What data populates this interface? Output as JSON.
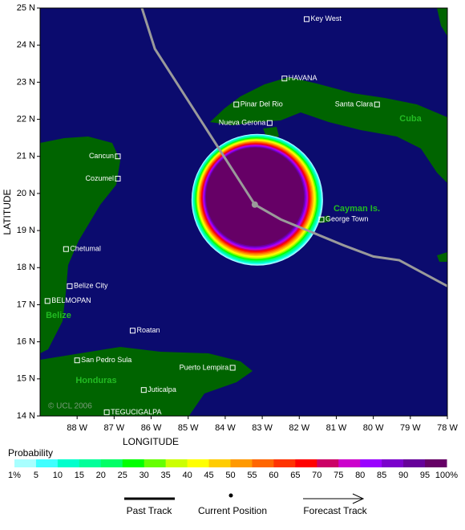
{
  "map": {
    "x_axis_label": "LONGITUDE",
    "y_axis_label": "LATITUDE",
    "lon_range": [
      89,
      78
    ],
    "lat_range": [
      14,
      25
    ],
    "lon_ticks": [
      {
        "value": 88,
        "label": "88 W"
      },
      {
        "value": 87,
        "label": "87 W"
      },
      {
        "value": 86,
        "label": "86 W"
      },
      {
        "value": 85,
        "label": "85 W"
      },
      {
        "value": 84,
        "label": "84 W"
      },
      {
        "value": 83,
        "label": "83 W"
      },
      {
        "value": 82,
        "label": "82 W"
      },
      {
        "value": 81,
        "label": "81 W"
      },
      {
        "value": 80,
        "label": "80 W"
      },
      {
        "value": 79,
        "label": "79 W"
      },
      {
        "value": 78,
        "label": "78 W"
      }
    ],
    "lat_ticks": [
      {
        "value": 14,
        "label": "14 N"
      },
      {
        "value": 15,
        "label": "15 N"
      },
      {
        "value": 16,
        "label": "16 N"
      },
      {
        "value": 17,
        "label": "17 N"
      },
      {
        "value": 18,
        "label": "18 N"
      },
      {
        "value": 19,
        "label": "19 N"
      },
      {
        "value": 20,
        "label": "20 N"
      },
      {
        "value": 21,
        "label": "21 N"
      },
      {
        "value": 22,
        "label": "22 N"
      },
      {
        "value": 23,
        "label": "23 N"
      },
      {
        "value": 24,
        "label": "24 N"
      },
      {
        "value": 25,
        "label": "25 N"
      }
    ],
    "cities": [
      {
        "name": "Key West",
        "lon": 81.8,
        "lat": 24.7
      },
      {
        "name": "HAVANA",
        "lon": 82.4,
        "lat": 23.1
      },
      {
        "name": "Pinar Del Rio",
        "lon": 83.7,
        "lat": 22.4
      },
      {
        "name": "Santa Clara",
        "lon": 79.9,
        "lat": 22.4
      },
      {
        "name": "Nueva Gerona",
        "lon": 82.8,
        "lat": 21.9
      },
      {
        "name": "Cancun",
        "lon": 86.9,
        "lat": 21.0
      },
      {
        "name": "Cozumel",
        "lon": 86.9,
        "lat": 20.4
      },
      {
        "name": "Chetumal",
        "lon": 88.3,
        "lat": 18.5
      },
      {
        "name": "Belize City",
        "lon": 88.2,
        "lat": 17.5
      },
      {
        "name": "BELMOPAN",
        "lon": 88.8,
        "lat": 17.1
      },
      {
        "name": "Roatan",
        "lon": 86.5,
        "lat": 16.3
      },
      {
        "name": "San Pedro Sula",
        "lon": 88.0,
        "lat": 15.5
      },
      {
        "name": "Puerto Lempira",
        "lon": 83.8,
        "lat": 15.3
      },
      {
        "name": "Juticalpa",
        "lon": 86.2,
        "lat": 14.7
      },
      {
        "name": "TEGUCIGALPA",
        "lon": 87.2,
        "lat": 14.1
      },
      {
        "name": "George Town",
        "lon": 81.4,
        "lat": 19.3
      }
    ],
    "regions": [
      "Cuba",
      "Cayman Is.",
      "Belize",
      "Honduras"
    ],
    "copyright": "© UCL 2006",
    "current_position": {
      "lon": 83.2,
      "lat": 19.7
    },
    "past_track": [
      {
        "lon": 86.25,
        "lat": 25.0
      },
      {
        "lon": 85.9,
        "lat": 23.9
      },
      {
        "lon": 83.2,
        "lat": 19.7
      }
    ],
    "forecast_track": [
      {
        "lon": 83.2,
        "lat": 19.7
      },
      {
        "lon": 82.5,
        "lat": 19.3
      },
      {
        "lon": 80.8,
        "lat": 18.6
      },
      {
        "lon": 80.0,
        "lat": 18.3
      },
      {
        "lon": 79.3,
        "lat": 18.2
      },
      {
        "lon": 78.0,
        "lat": 17.5
      }
    ]
  },
  "probability_legend": {
    "title": "Probability",
    "levels": [
      {
        "value": 1,
        "label": "1%"
      },
      5,
      10,
      15,
      20,
      25,
      30,
      35,
      40,
      45,
      50,
      55,
      60,
      65,
      70,
      75,
      80,
      85,
      90,
      95,
      {
        "value": 100,
        "label": "100%"
      }
    ],
    "colors": [
      "#a8ffff",
      "#40ffff",
      "#00ffcc",
      "#00ff99",
      "#00ff66",
      "#00ff00",
      "#66ff00",
      "#ccff00",
      "#ffff00",
      "#ffcc00",
      "#ff9900",
      "#ff6600",
      "#ff3300",
      "#ff0000",
      "#cc0066",
      "#cc00cc",
      "#9900ff",
      "#7a00cc",
      "#66009a",
      "#660066"
    ]
  },
  "track_legend": {
    "past": "Past Track",
    "current": "Current Position",
    "forecast": "Forecast Track"
  }
}
